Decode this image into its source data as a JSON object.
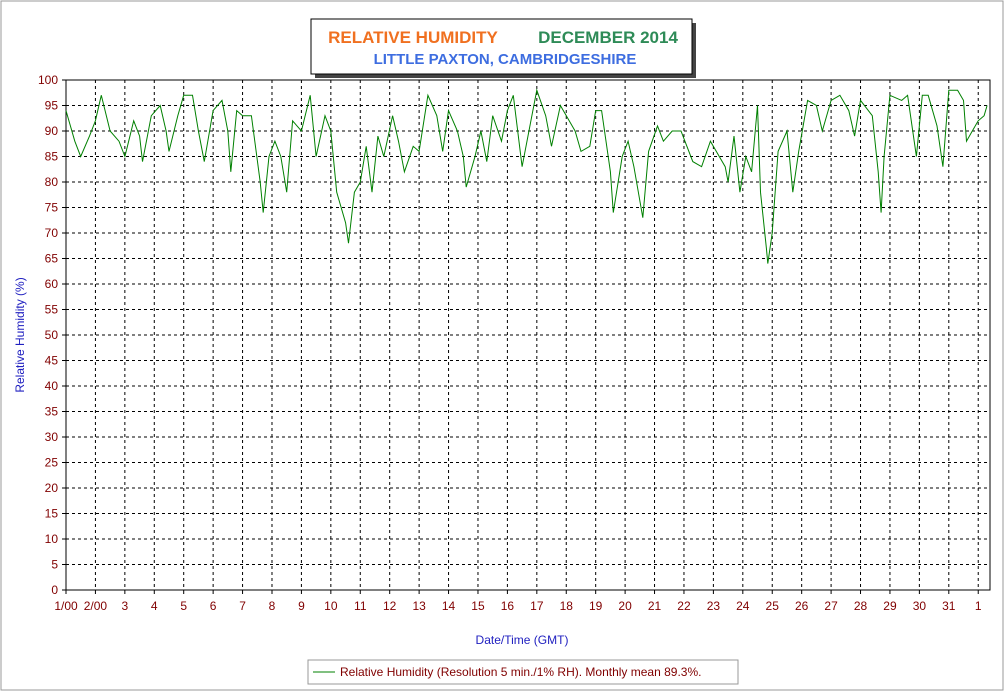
{
  "chart_data": {
    "type": "line",
    "title": "RELATIVE HUMIDITY",
    "period": "DECEMBER 2014",
    "subtitle": "LITTLE PAXTON, CAMBRIDGESHIRE",
    "y_label": "Relative Humidity (%)",
    "x_label": "Date/Time (GMT)",
    "ylim": [
      0,
      100
    ],
    "yticks": [
      0,
      5,
      10,
      15,
      20,
      25,
      30,
      35,
      40,
      45,
      50,
      55,
      60,
      65,
      70,
      75,
      80,
      85,
      90,
      95,
      100
    ],
    "xlim": [
      1,
      32.4
    ],
    "xticks": [
      {
        "value": 1,
        "label": "1/00"
      },
      {
        "value": 2,
        "label": "2/00"
      },
      3,
      4,
      5,
      6,
      7,
      8,
      9,
      10,
      11,
      12,
      13,
      14,
      15,
      16,
      17,
      18,
      19,
      20,
      21,
      22,
      23,
      24,
      25,
      26,
      27,
      28,
      29,
      30,
      31,
      {
        "value": 32,
        "label": "1"
      }
    ],
    "grid": true,
    "x": [
      1.0,
      1.3,
      1.5,
      1.8,
      2.0,
      2.2,
      2.5,
      2.8,
      3.0,
      3.3,
      3.5,
      3.6,
      3.9,
      4.2,
      4.4,
      4.5,
      4.8,
      5.0,
      5.3,
      5.5,
      5.7,
      6.0,
      6.3,
      6.5,
      6.6,
      6.8,
      7.0,
      7.3,
      7.6,
      7.7,
      7.9,
      8.1,
      8.3,
      8.5,
      8.7,
      9.0,
      9.3,
      9.5,
      9.8,
      10.0,
      10.2,
      10.5,
      10.6,
      10.8,
      11.0,
      11.2,
      11.4,
      11.6,
      11.8,
      12.1,
      12.3,
      12.5,
      12.8,
      13.0,
      13.3,
      13.6,
      13.8,
      14.0,
      14.3,
      14.5,
      14.6,
      14.9,
      15.1,
      15.3,
      15.5,
      15.8,
      16.0,
      16.2,
      16.5,
      16.8,
      17.0,
      17.3,
      17.5,
      17.8,
      18.0,
      18.3,
      18.5,
      18.8,
      19.0,
      19.2,
      19.5,
      19.6,
      19.9,
      20.1,
      20.3,
      20.6,
      20.8,
      21.1,
      21.3,
      21.6,
      21.9,
      22.1,
      22.3,
      22.6,
      22.9,
      23.1,
      23.4,
      23.5,
      23.7,
      23.9,
      24.1,
      24.3,
      24.5,
      24.6,
      24.8,
      24.85,
      25.0,
      25.2,
      25.5,
      25.7,
      25.9,
      26.2,
      26.5,
      26.7,
      27.0,
      27.3,
      27.6,
      27.8,
      28.0,
      28.4,
      28.6,
      28.7,
      28.8,
      29.0,
      29.4,
      29.6,
      29.9,
      30.1,
      30.3,
      30.6,
      30.8,
      31.0,
      31.3,
      31.5,
      31.6,
      31.8,
      32.0,
      32.2,
      32.3
    ],
    "series": [
      {
        "name": "Relative Humidity (Resolution 5 min./1% RH). Monthly mean 89.3%.",
        "color": "#008000",
        "values": [
          94,
          88,
          85,
          89,
          92,
          97,
          90,
          88,
          85,
          92,
          89,
          84,
          93,
          95,
          90,
          86,
          93,
          97,
          97,
          90,
          84,
          94,
          96,
          90,
          82,
          94,
          93,
          93,
          80,
          74,
          85,
          88,
          85,
          78,
          92,
          90,
          97,
          85,
          93,
          90,
          78,
          72,
          68,
          78,
          80,
          87,
          78,
          89,
          85,
          93,
          88,
          82,
          87,
          86,
          97,
          93,
          86,
          94,
          90,
          85,
          79,
          85,
          90,
          84,
          93,
          88,
          94,
          97,
          83,
          92,
          98,
          93,
          87,
          95,
          93,
          90,
          86,
          87,
          94,
          94,
          82,
          74,
          85,
          88,
          83,
          73,
          86,
          91,
          88,
          90,
          90,
          87,
          84,
          83,
          88,
          86,
          83,
          80,
          89,
          78,
          85,
          82,
          95,
          78,
          67,
          64,
          70,
          86,
          90,
          78,
          86,
          96,
          95,
          90,
          96,
          97,
          94,
          89,
          96,
          93,
          82,
          74,
          85,
          97,
          96,
          97,
          85,
          97,
          97,
          91,
          83,
          98,
          98,
          96,
          88,
          90,
          92,
          93,
          95
        ]
      }
    ]
  }
}
